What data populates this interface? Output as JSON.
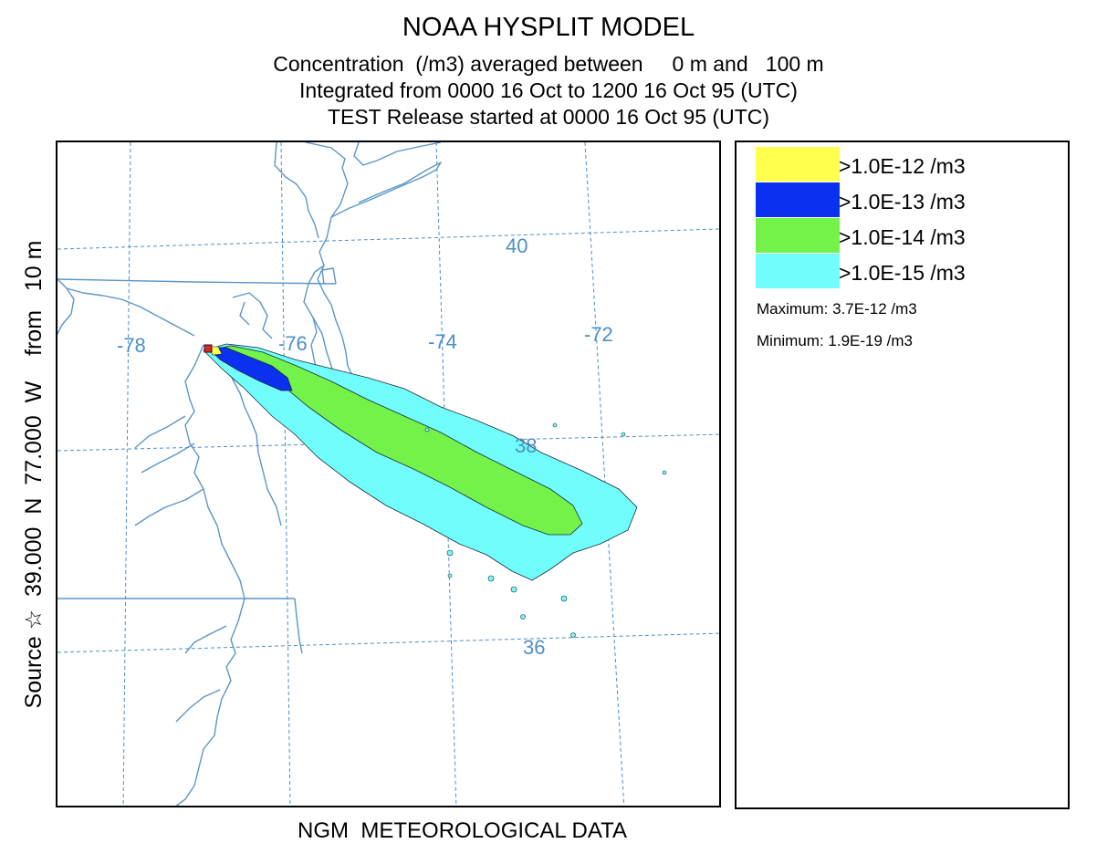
{
  "title": "NOAA HYSPLIT MODEL",
  "subtitle_1": "Concentration  (/m3) averaged between     0 m and   100 m",
  "subtitle_2": "Integrated from 0000 16 Oct to 1200 16 Oct 95 (UTC)",
  "subtitle_3": "TEST Release started at 0000 16 Oct 95 (UTC)",
  "side_label": "Source ☆  39.000  N  77.000  W    from   10 m",
  "bottom_label": "NGM  METEOROLOGICAL DATA",
  "legend": {
    "items": [
      {
        "label": ">1.0E-12 /m3",
        "color": "#ffff4d"
      },
      {
        "label": ">1.0E-13 /m3",
        "color": "#0a30f0"
      },
      {
        "label": ">1.0E-14 /m3",
        "color": "#73f24a"
      },
      {
        "label": ">1.0E-15 /m3",
        "color": "#72fdfd"
      }
    ],
    "maximum": "Maximum: 3.7E-12 /m3",
    "minimum": "Minimum: 1.9E-19 /m3"
  },
  "map": {
    "longitude_labels": [
      "-78",
      "-76",
      "-74",
      "-72"
    ],
    "latitude_labels": [
      "40",
      "38",
      "36"
    ],
    "grid_color": "#4c8fc7",
    "boundary_color": "#5a96c8",
    "source_marker_color": "#d8262c"
  }
}
